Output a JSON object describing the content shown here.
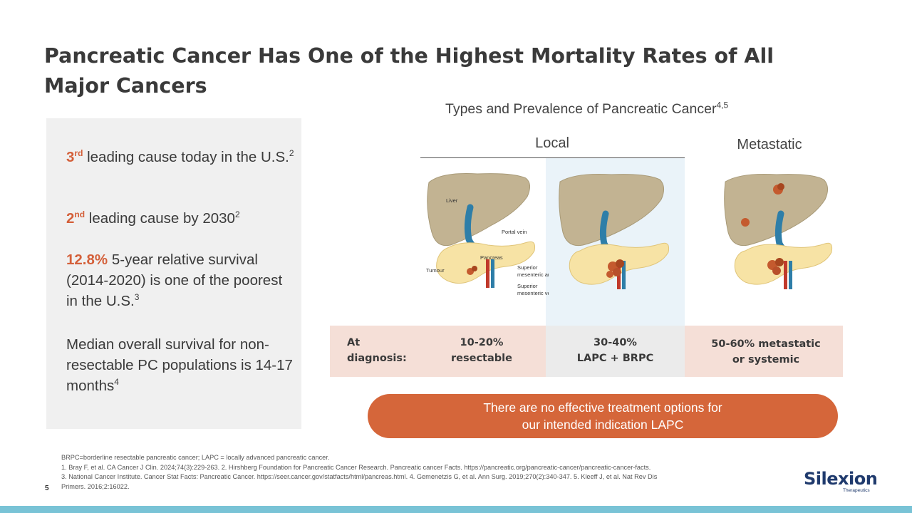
{
  "title": "Pancreatic Cancer Has One of the Highest Mortality Rates of All Major Cancers",
  "stats": {
    "s1": {
      "hl": "3",
      "hl_sup": "rd",
      "text": " leading cause today in the U.S.",
      "sup": "2"
    },
    "s2": {
      "hl": "2",
      "hl_sup": "nd",
      "text": " leading cause by 2030",
      "sup": "2"
    },
    "s3": {
      "hl": "12.8%",
      "text": " 5-year relative survival (2014-2020) is one of the poorest in the U.S.",
      "sup": "3"
    },
    "s4": {
      "text": "Median overall survival for non-resectable PC populations is 14-17 months",
      "sup": "4"
    }
  },
  "prevalence": {
    "title": "Types and Prevalence of Pancreatic Cancer",
    "title_sup": "4,5",
    "local_label": "Local",
    "metastatic_label": "Metastatic"
  },
  "illustration_labels": {
    "liver": "Liver",
    "portal_vein": "Portal vein",
    "pancreas": "Pancreas",
    "tumour": "Tumour",
    "sma_1": "Superior",
    "sma_2": "mesenteric artery",
    "smv_1": "Superior",
    "smv_2": "mesenteric vein"
  },
  "diagnosis": {
    "label_1": "At",
    "label_2": "diagnosis:",
    "resectable_1": "10-20%",
    "resectable_2": "resectable",
    "lapc_1": "30-40%",
    "lapc_2": "LAPC + BRPC",
    "metastatic_1": "50-60% metastatic",
    "metastatic_2": "or systemic"
  },
  "banner": {
    "line1": "There are no effective treatment options for",
    "line2": "our intended indication LAPC"
  },
  "footnotes": {
    "line1": "BRPC=borderline resectable pancreatic cancer; LAPC = locally advanced pancreatic cancer.",
    "line2": "1. Bray F, et al. CA Cancer J Clin. 2024;74(3):229-263. 2. Hirshberg Foundation for Pancreatic Cancer Research. Pancreatic cancer Facts. https://pancreatic.org/pancreatic-cancer/pancreatic-cancer-facts.",
    "line3": "3. National Cancer Institute. Cancer Stat Facts: Pancreatic Cancer. https://seer.cancer.gov/statfacts/html/pancreas.html. 4. Gemenetzis G, et al. Ann Surg. 2019;270(2):340-347. 5. Kleeff J, et al. Nat Rev Dis",
    "line4": "Primers. 2016;2:16022."
  },
  "page_number": "5",
  "logo": {
    "name": "Silexion",
    "sub": "Therapeutics"
  },
  "colors": {
    "accent": "#d5663a",
    "highlight_text": "#d4603a",
    "bar": "#79c3d6",
    "logo": "#1f3a6d"
  }
}
